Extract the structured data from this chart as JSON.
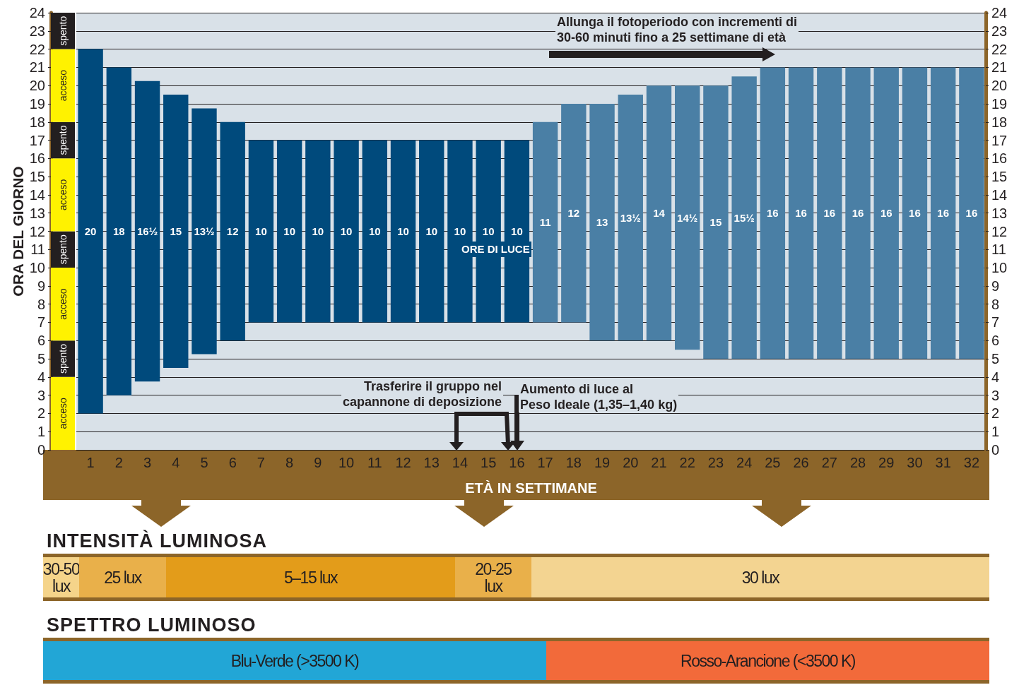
{
  "chart_data": [
    {
      "type": "bar",
      "stacked": true,
      "ylabel": "ORA DEL GIORNO",
      "categories": [
        null
      ],
      "tick_labels": "y",
      "ylim": [
        0,
        24
      ],
      "yticks": [
        0,
        1,
        2,
        3,
        4,
        5,
        6,
        7,
        8,
        9,
        10,
        11,
        12,
        13,
        14,
        15,
        16,
        17,
        18,
        19,
        20,
        21,
        22,
        23,
        24
      ],
      "series": [
        {
          "color": "#fff200",
          "values": [
            4
          ],
          "value_labels": [
            "acceso"
          ]
        },
        {
          "color": "#231f20",
          "values": [
            2
          ],
          "value_labels": [
            "spento"
          ]
        },
        {
          "color": "#fff200",
          "values": [
            4
          ],
          "value_labels": [
            "acceso"
          ]
        },
        {
          "color": "#231f20",
          "values": [
            2
          ],
          "value_labels": [
            "spento"
          ]
        },
        {
          "color": "#fff200",
          "values": [
            4
          ],
          "value_labels": [
            "acceso"
          ]
        },
        {
          "color": "#231f20",
          "values": [
            2
          ],
          "value_labels": [
            "spento"
          ]
        },
        {
          "color": "#fff200",
          "values": [
            4
          ],
          "value_labels": [
            "acceso"
          ]
        },
        {
          "color": "#231f20",
          "values": [
            2
          ],
          "value_labels": [
            "spento"
          ]
        }
      ]
    },
    {
      "type": "bar",
      "xlabel": "ETÀ IN SETTIMANE",
      "categories": [
        "1",
        "2",
        "3",
        "4",
        "5",
        "6",
        "7",
        "8",
        "9",
        "10",
        "11",
        "12",
        "13",
        "14",
        "15",
        "16",
        "17",
        "18",
        "19",
        "20",
        "21",
        "22",
        "23",
        "24",
        "25",
        "26",
        "27",
        "28",
        "29",
        "30",
        "31",
        "32"
      ],
      "base": [
        2,
        3,
        3.75,
        4.5,
        5.25,
        6,
        7,
        7,
        7,
        7,
        7,
        7,
        7,
        7,
        7,
        7,
        7,
        7,
        6,
        6,
        6,
        5.5,
        5,
        5,
        5,
        5,
        5,
        5,
        5,
        5,
        5,
        5
      ],
      "values": [
        20,
        18,
        16.5,
        15,
        13.5,
        12,
        10,
        10,
        10,
        10,
        10,
        10,
        10,
        10,
        10,
        10,
        11,
        12,
        13,
        13.5,
        14,
        14.5,
        15,
        15.5,
        16,
        16,
        16,
        16,
        16,
        16,
        16,
        16
      ],
      "value_labels": [
        "20",
        "18",
        "16½",
        "15",
        "13½",
        "12",
        "10",
        "10",
        "10",
        "10",
        "10",
        "10",
        "10",
        "10",
        "10",
        "10",
        "11",
        "12",
        "13",
        "13½",
        "14",
        "14½",
        "15",
        "15½",
        "16",
        "16",
        "16",
        "16",
        "16",
        "16",
        "16",
        "16"
      ],
      "colors": [
        "#004a7c",
        "#004a7c",
        "#004a7c",
        "#004a7c",
        "#004a7c",
        "#004a7c",
        "#004a7c",
        "#004a7c",
        "#004a7c",
        "#004a7c",
        "#004a7c",
        "#004a7c",
        "#004a7c",
        "#004a7c",
        "#004a7c",
        "#004a7c",
        "#4a7fa5",
        "#4a7fa5",
        "#4a7fa5",
        "#4a7fa5",
        "#4a7fa5",
        "#4a7fa5",
        "#4a7fa5",
        "#4a7fa5",
        "#4a7fa5",
        "#4a7fa5",
        "#4a7fa5",
        "#4a7fa5",
        "#4a7fa5",
        "#4a7fa5",
        "#4a7fa5",
        "#4a7fa5"
      ],
      "ylim": [
        0,
        24
      ],
      "yticks": [
        0,
        1,
        2,
        3,
        4,
        5,
        6,
        7,
        8,
        9,
        10,
        11,
        12,
        13,
        14,
        15,
        16,
        17,
        18,
        19,
        20,
        21,
        22,
        23,
        24
      ],
      "grid": "y",
      "annotations": [
        "Allunga il fotoperiodo con incrementi di\n30-60 minuti fino a 25 settimane di età",
        "Trasferire il gruppo nel\ncapannone di deposizione",
        "Aumento di luce al\nPeso Ideale (1,35–1,40 kg)",
        "ORE DI LUCE"
      ]
    },
    {
      "type": "other",
      "title": "INTENSITÀ LUMINOSA",
      "categories": [
        "30-50\nlux",
        "25 lux",
        "5–15 lux",
        "20-25\nlux",
        "30 lux"
      ],
      "colors": [
        "#f5d48a",
        "#e9b04a",
        "#e39c1a",
        "#e9b04a",
        "#f3d491"
      ]
    },
    {
      "type": "other",
      "title": "SPETTRO LUMINOSO",
      "categories": [
        "Blu-Verde (>3500 K)",
        "Rosso-Arancione (<3500 K)"
      ],
      "colors": [
        "#22a6d6",
        "#f26a3a"
      ]
    }
  ]
}
